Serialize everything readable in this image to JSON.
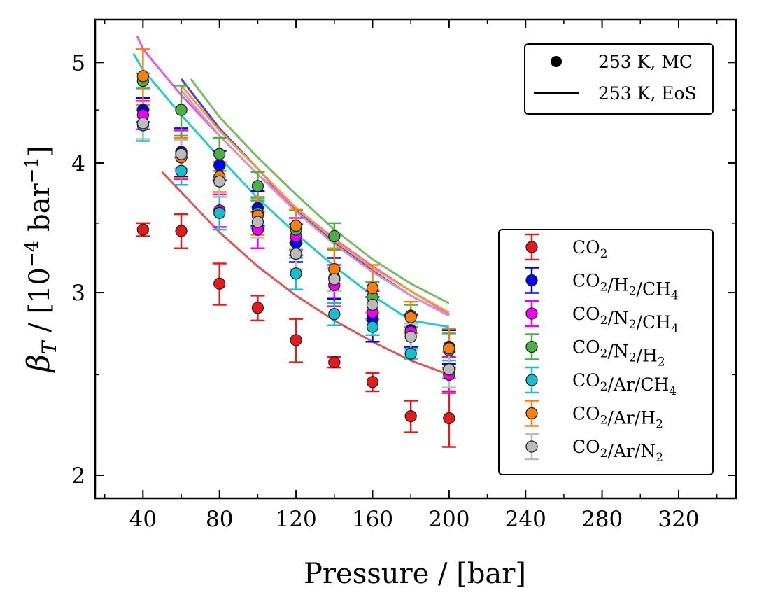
{
  "chart_data": {
    "type": "scatter",
    "xlabel": "Pressure / [bar]",
    "ylabel_main": "β",
    "ylabel_sub": "T",
    "ylabel_units_open": " / [10",
    "ylabel_exp": "−4",
    "ylabel_units_mid": " bar",
    "ylabel_exp2": "−1",
    "ylabel_units_close": "]",
    "xlim": [
      15,
      350
    ],
    "ylim": [
      1.9,
      5.5
    ],
    "yscale": "log",
    "xticks": [
      40,
      80,
      120,
      160,
      200,
      240,
      280,
      320
    ],
    "xtick_labels": [
      "40",
      "80",
      "120",
      "160",
      "200",
      "240",
      "280",
      "320"
    ],
    "yticks": [
      2,
      3,
      4,
      5
    ],
    "ytick_labels": [
      "2",
      "3",
      "4",
      "5"
    ],
    "grid": false,
    "style_legend": {
      "placement": "top-right",
      "entries": [
        {
          "label": "253 K, MC",
          "marker": "circle"
        },
        {
          "label": "253 K, EoS",
          "marker": "line"
        }
      ]
    },
    "series_legend_placement": "center-right",
    "x": [
      40,
      60,
      80,
      100,
      120,
      140,
      160,
      180,
      200
    ],
    "series": [
      {
        "name_base": "CO",
        "name_subs": [
          [
            "CO",
            "2"
          ]
        ],
        "color": "#e41a1c",
        "mc": [
          3.45,
          3.44,
          3.06,
          2.9,
          2.7,
          2.57,
          2.46,
          2.28,
          2.27
        ],
        "err": [
          0.05,
          0.13,
          0.14,
          0.08,
          0.13,
          0.03,
          0.05,
          0.08,
          0.14
        ],
        "eos_x": [
          50,
          60,
          80,
          100,
          120,
          140,
          160,
          180,
          200
        ],
        "eos_y": [
          3.92,
          3.75,
          3.43,
          3.18,
          2.98,
          2.82,
          2.69,
          2.58,
          2.5
        ]
      },
      {
        "name_parts": [
          [
            "CO",
            "2"
          ],
          [
            "/H",
            "2"
          ],
          [
            "/CH",
            "4"
          ]
        ],
        "color": "#0000ee",
        "mc": [
          4.5,
          4.1,
          3.98,
          3.62,
          3.35,
          3.1,
          2.83,
          2.76,
          2.66
        ],
        "err": [
          0.12,
          0.22,
          0.13,
          0.14,
          0.14,
          0.14,
          0.14,
          0.1,
          0.1
        ],
        "eos_x": [
          60,
          80,
          100,
          120,
          140,
          160,
          180,
          200
        ],
        "eos_y": [
          4.82,
          4.32,
          3.95,
          3.6,
          3.35,
          3.15,
          2.98,
          2.85
        ]
      },
      {
        "name_parts": [
          [
            "CO",
            "2"
          ],
          [
            "/N",
            "2"
          ],
          [
            "/CH",
            "4"
          ]
        ],
        "color": "#ee00ee",
        "mc": [
          4.45,
          4.08,
          3.6,
          3.45,
          3.4,
          3.05,
          2.87,
          2.75,
          2.5
        ],
        "err": [
          0.14,
          0.22,
          0.13,
          0.14,
          0.14,
          0.14,
          0.14,
          0.1,
          0.1
        ],
        "eos_x": [
          37,
          40,
          60,
          80,
          100,
          120,
          140,
          160,
          180,
          200
        ],
        "eos_y": [
          5.3,
          5.15,
          4.65,
          4.25,
          3.9,
          3.62,
          3.38,
          3.18,
          3.01,
          2.86
        ]
      },
      {
        "name_parts": [
          [
            "CO",
            "2"
          ],
          [
            "/N",
            "2"
          ],
          [
            "/H",
            "2"
          ]
        ],
        "color": "#4daf4a",
        "mc": [
          4.8,
          4.5,
          4.08,
          3.8,
          3.45,
          3.4,
          2.97,
          2.85,
          2.64
        ],
        "err": [
          0.08,
          0.25,
          0.15,
          0.12,
          0.15,
          0.1,
          0.1,
          0.07,
          0.1
        ],
        "eos_x": [
          65,
          80,
          100,
          120,
          140,
          160,
          180,
          200
        ],
        "eos_y": [
          4.82,
          4.43,
          4.05,
          3.73,
          3.45,
          3.23,
          3.06,
          2.93
        ]
      },
      {
        "name_parts": [
          [
            "CO",
            "2"
          ],
          [
            "/Ar",
            ""
          ],
          [
            "/CH",
            "4"
          ]
        ],
        "color": "#17becf",
        "mc": [
          4.35,
          3.93,
          3.58,
          3.58,
          3.13,
          2.86,
          2.78,
          2.62,
          2.53
        ],
        "err": [
          0.15,
          0.12,
          0.13,
          0.12,
          0.11,
          0.07,
          0.05,
          0.03,
          0.05
        ],
        "eos_x": [
          35,
          40,
          60,
          80,
          100,
          120,
          140,
          160,
          180,
          200
        ],
        "eos_y": [
          5.1,
          4.92,
          4.45,
          4.05,
          3.7,
          3.42,
          3.18,
          2.98,
          2.82,
          2.78
        ]
      },
      {
        "name_parts": [
          [
            "CO",
            "2"
          ],
          [
            "/Ar",
            ""
          ],
          [
            "/H",
            "2"
          ]
        ],
        "color": "#ff7f0e",
        "mc": [
          4.85,
          4.05,
          3.88,
          3.56,
          3.48,
          3.16,
          3.03,
          2.84,
          2.65
        ],
        "err": [
          0.3,
          0.18,
          0.13,
          0.15,
          0.13,
          0.15,
          0.16,
          0.1,
          0.12
        ],
        "eos_x": [
          60,
          80,
          100,
          120,
          140,
          160,
          180,
          200
        ],
        "eos_y": [
          4.75,
          4.3,
          3.95,
          3.62,
          3.37,
          3.17,
          3.01,
          2.87
        ]
      },
      {
        "name_parts": [
          [
            "CO",
            "2"
          ],
          [
            "/Ar",
            ""
          ],
          [
            "/N",
            "2"
          ]
        ],
        "color": "#bbbbbb",
        "mc": [
          4.37,
          4.08,
          3.84,
          3.51,
          3.27,
          3.09,
          2.92,
          2.72,
          2.53
        ],
        "err": [
          0.15,
          0.13,
          0.13,
          0.12,
          0.11,
          0.08,
          0.1,
          0.08,
          0.1
        ],
        "eos_x": [
          60,
          80,
          100,
          120,
          140,
          160,
          180,
          200
        ],
        "eos_y": [
          4.7,
          4.25,
          3.9,
          3.59,
          3.34,
          3.14,
          2.98,
          2.85
        ]
      }
    ],
    "eos_line_colors": [
      "#e05555",
      "#4444dd",
      "#ee55ee",
      "#77bb66",
      "#22cccc",
      "#ff9933",
      "#cc99cc"
    ]
  }
}
